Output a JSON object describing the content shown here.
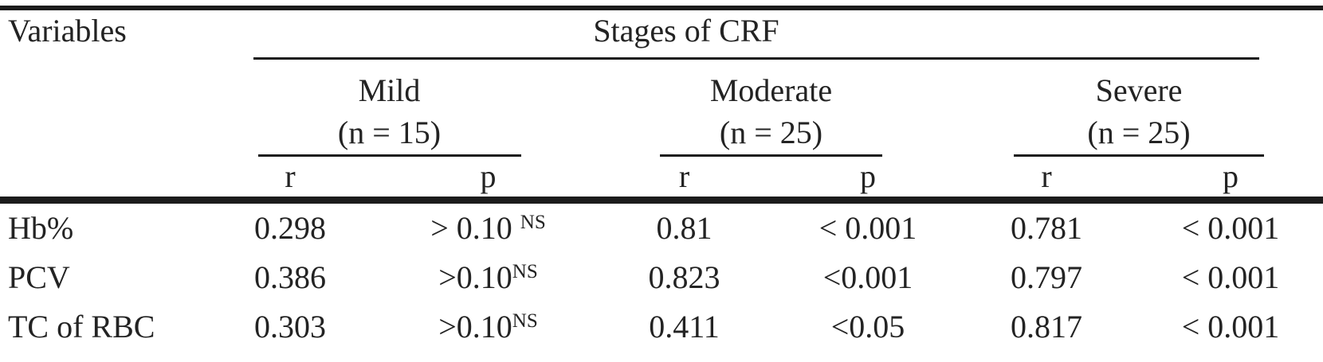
{
  "table": {
    "title_row": {
      "variables": "Variables",
      "stages": "Stages of CRF"
    },
    "groups": [
      {
        "name": "Mild",
        "n": "(n = 15)",
        "r_label": "r",
        "p_label": "p"
      },
      {
        "name": "Moderate",
        "n": "(n = 25)",
        "r_label": "r",
        "p_label": "p"
      },
      {
        "name": "Severe",
        "n": "(n = 25)",
        "r_label": "r",
        "p_label": "p"
      }
    ],
    "rows": [
      {
        "variable": "Hb%",
        "mild_r": "0.298",
        "mild_p": "> 0.10 ",
        "mild_p_sup": "NS",
        "moderate_r": "0.81",
        "moderate_p": "< 0.001",
        "moderate_p_sup": "",
        "severe_r": "0.781",
        "severe_p": "< 0.001",
        "severe_p_sup": ""
      },
      {
        "variable": "PCV",
        "mild_r": "0.386",
        "mild_p": ">0.10",
        "mild_p_sup": "NS",
        "moderate_r": "0.823",
        "moderate_p": "<0.001",
        "moderate_p_sup": "",
        "severe_r": "0.797",
        "severe_p": "< 0.001",
        "severe_p_sup": ""
      },
      {
        "variable": "TC of RBC",
        "mild_r": "0.303",
        "mild_p": ">0.10",
        "mild_p_sup": "NS",
        "moderate_r": "0.411",
        "moderate_p": "<0.05",
        "moderate_p_sup": "",
        "severe_r": "0.817",
        "severe_p": "< 0.001",
        "severe_p_sup": ""
      }
    ],
    "line_color": "#1c1c1c"
  }
}
